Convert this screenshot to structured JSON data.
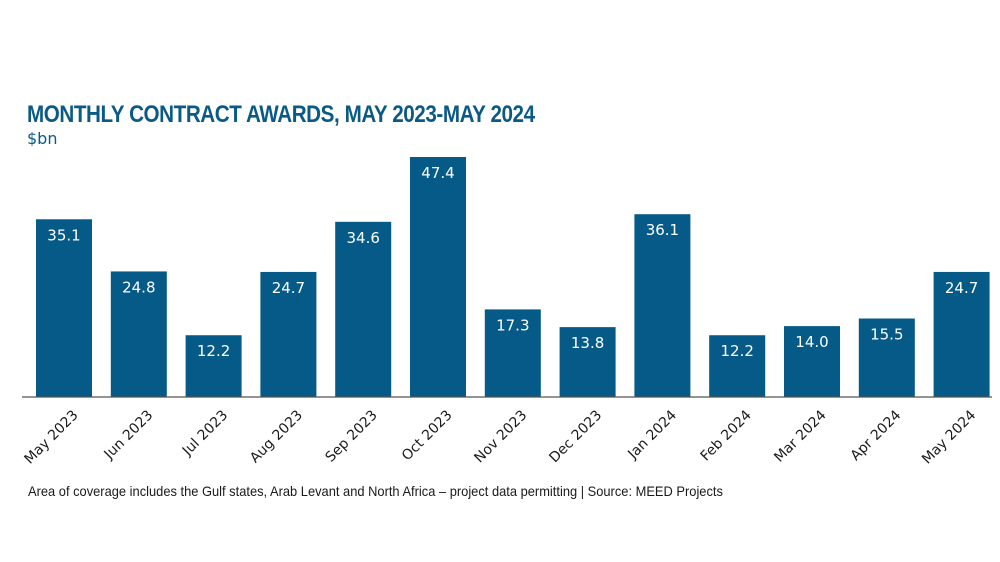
{
  "colors": {
    "bar": "#055a87",
    "title": "#0a5a85",
    "axis": "#555555",
    "label": "#ffffff",
    "tick": "#1a1a1a"
  },
  "footnote": "Area of coverage includes the Gulf states, Arab Levant and North Africa – project data permitting | Source: MEED Projects",
  "chart_data": {
    "type": "bar",
    "title": "MONTHLY CONTRACT AWARDS, MAY 2023-MAY 2024",
    "subtitle": "$bn",
    "xlabel": "",
    "ylabel": "$bn",
    "categories": [
      "May 2023",
      "Jun 2023",
      "Jul 2023",
      "Aug 2023",
      "Sep 2023",
      "Oct 2023",
      "Nov 2023",
      "Dec 2023",
      "Jan 2024",
      "Feb 2024",
      "Mar 2024",
      "Apr 2024",
      "May 2024"
    ],
    "values": [
      35.1,
      24.8,
      12.2,
      24.7,
      34.6,
      47.4,
      17.3,
      13.8,
      36.1,
      12.2,
      14.0,
      15.5,
      24.7
    ],
    "value_labels": [
      "35.1",
      "24.8",
      "12.2",
      "24.7",
      "34.6",
      "47.4",
      "17.3",
      "13.8",
      "36.1",
      "12.2",
      "14.0",
      "15.5",
      "24.7"
    ],
    "ylim": [
      0,
      47.4
    ],
    "grid": false,
    "legend": "none"
  }
}
